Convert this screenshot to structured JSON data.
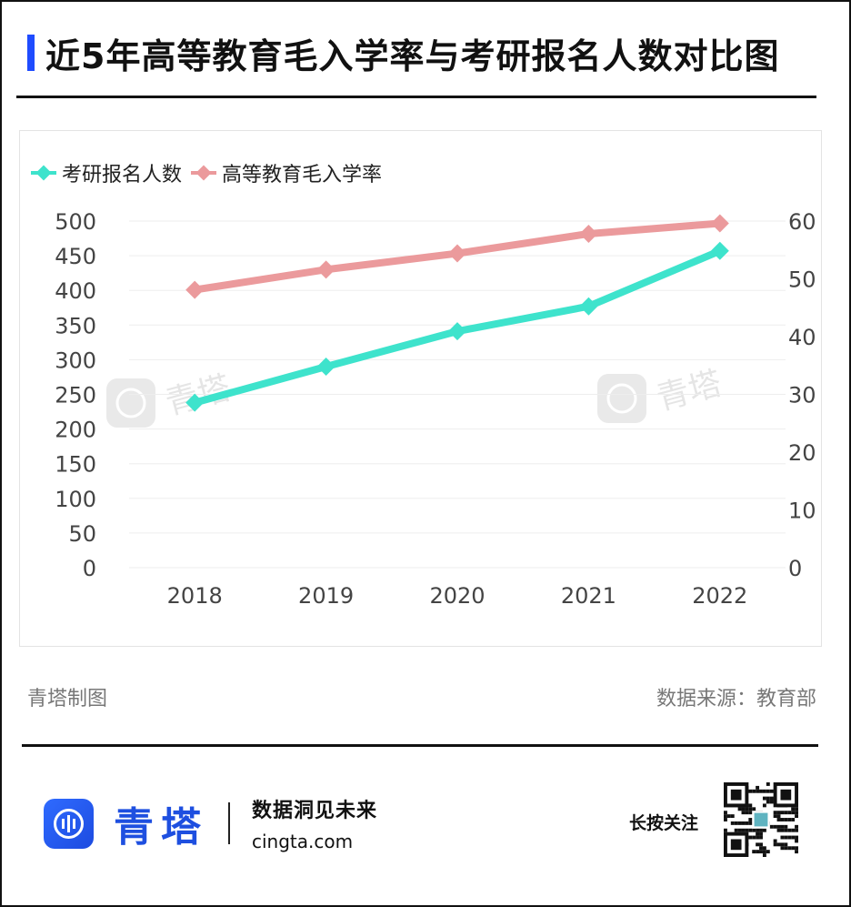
{
  "title": "近5年高等教育毛入学率与考研报名人数对比图",
  "footer": {
    "left": "青塔制图",
    "source": "数据来源：教育部"
  },
  "brand": {
    "name": "青塔",
    "slogan": "数据洞见未来",
    "site": "cingta.com",
    "follow": "长按关注",
    "watermark": "青塔"
  },
  "colors": {
    "accent": "#1f4cff",
    "series1": "#3ee3cc",
    "series2": "#eb9a9c",
    "brand": "#1e4fe0"
  },
  "chart_data": {
    "type": "line",
    "categories": [
      "2018",
      "2019",
      "2020",
      "2021",
      "2022"
    ],
    "series": [
      {
        "name": "考研报名人数",
        "axis": "left",
        "values": [
          238,
          290,
          341,
          377,
          457
        ]
      },
      {
        "name": "高等教育毛入学率",
        "axis": "right",
        "values": [
          48.1,
          51.6,
          54.4,
          57.8,
          59.6
        ]
      }
    ],
    "yleft": {
      "ticks": [
        0,
        50,
        100,
        150,
        200,
        250,
        300,
        350,
        400,
        450,
        500
      ],
      "range": [
        0,
        500
      ]
    },
    "yright": {
      "ticks": [
        0,
        10,
        20,
        30,
        40,
        50,
        60
      ],
      "range": [
        0,
        60
      ]
    },
    "grid": true,
    "legend": "top-left"
  }
}
